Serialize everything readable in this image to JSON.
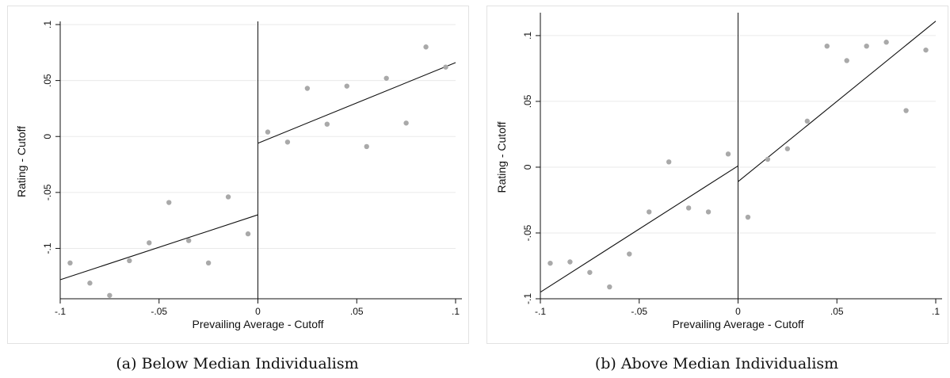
{
  "charts": [
    {
      "caption": "(a) Below Median Individualism",
      "chart_data": {
        "type": "scatter",
        "xlabel": "Prevailing Average - Cutoff",
        "ylabel": "Rating - Cutoff",
        "xlim": [
          -0.1,
          0.1
        ],
        "ylim": [
          -0.145,
          0.1
        ],
        "xticks": [
          -0.1,
          -0.05,
          0,
          0.05,
          0.1
        ],
        "xtick_labels": [
          "-.1",
          "-.05",
          "0",
          ".05",
          ".1"
        ],
        "yticks": [
          -0.1,
          -0.05,
          0,
          0.05,
          0.1
        ],
        "ytick_labels": [
          "-.1",
          "-.05",
          "0",
          ".05",
          ".1"
        ],
        "grid": true,
        "cutoff_line_x": 0,
        "points": [
          {
            "x": -0.095,
            "y": -0.113
          },
          {
            "x": -0.085,
            "y": -0.131
          },
          {
            "x": -0.075,
            "y": -0.142
          },
          {
            "x": -0.065,
            "y": -0.111
          },
          {
            "x": -0.055,
            "y": -0.095
          },
          {
            "x": -0.045,
            "y": -0.059
          },
          {
            "x": -0.035,
            "y": -0.093
          },
          {
            "x": -0.025,
            "y": -0.113
          },
          {
            "x": -0.015,
            "y": -0.054
          },
          {
            "x": -0.005,
            "y": -0.087
          },
          {
            "x": 0.005,
            "y": 0.004
          },
          {
            "x": 0.015,
            "y": -0.005
          },
          {
            "x": 0.025,
            "y": 0.043
          },
          {
            "x": 0.035,
            "y": 0.011
          },
          {
            "x": 0.045,
            "y": 0.045
          },
          {
            "x": 0.055,
            "y": -0.009
          },
          {
            "x": 0.065,
            "y": 0.052
          },
          {
            "x": 0.075,
            "y": 0.012
          },
          {
            "x": 0.085,
            "y": 0.08
          },
          {
            "x": 0.095,
            "y": 0.062
          }
        ],
        "fit_lines": [
          {
            "x": [
              -0.1,
              0
            ],
            "y": [
              -0.128,
              -0.07
            ]
          },
          {
            "x": [
              0,
              0.1
            ],
            "y": [
              -0.006,
              0.066
            ]
          }
        ]
      }
    },
    {
      "caption": "(b) Above Median Individualism",
      "chart_data": {
        "type": "scatter",
        "xlabel": "Prevailing Average - Cutoff",
        "ylabel": "Rating - Cutoff",
        "xlim": [
          -0.1,
          0.1
        ],
        "ylim": [
          -0.1,
          0.115
        ],
        "xticks": [
          -0.1,
          -0.05,
          0,
          0.05,
          0.1
        ],
        "xtick_labels": [
          "-.1",
          "-.05",
          "0",
          ".05",
          ".1"
        ],
        "yticks": [
          -0.1,
          -0.05,
          0,
          0.05,
          0.1
        ],
        "ytick_labels": [
          "-.1",
          "-.05",
          "0",
          ".05",
          ".1"
        ],
        "grid": true,
        "cutoff_line_x": 0,
        "points": [
          {
            "x": -0.095,
            "y": -0.073
          },
          {
            "x": -0.085,
            "y": -0.072
          },
          {
            "x": -0.075,
            "y": -0.08
          },
          {
            "x": -0.065,
            "y": -0.091
          },
          {
            "x": -0.055,
            "y": -0.066
          },
          {
            "x": -0.045,
            "y": -0.034
          },
          {
            "x": -0.035,
            "y": 0.004
          },
          {
            "x": -0.025,
            "y": -0.031
          },
          {
            "x": -0.015,
            "y": -0.034
          },
          {
            "x": -0.005,
            "y": 0.01
          },
          {
            "x": 0.005,
            "y": -0.038
          },
          {
            "x": 0.015,
            "y": 0.006
          },
          {
            "x": 0.025,
            "y": 0.014
          },
          {
            "x": 0.035,
            "y": 0.035
          },
          {
            "x": 0.045,
            "y": 0.092
          },
          {
            "x": 0.055,
            "y": 0.081
          },
          {
            "x": 0.065,
            "y": 0.092
          },
          {
            "x": 0.075,
            "y": 0.095
          },
          {
            "x": 0.085,
            "y": 0.043
          },
          {
            "x": 0.095,
            "y": 0.089
          }
        ],
        "fit_lines": [
          {
            "x": [
              -0.1,
              0
            ],
            "y": [
              -0.095,
              0.001
            ]
          },
          {
            "x": [
              0,
              0.1
            ],
            "y": [
              -0.011,
              0.111
            ]
          }
        ]
      }
    }
  ],
  "colors": {
    "points": "#a9a9a9",
    "lines": "#111111",
    "grid": "#eaeaea",
    "axis": "#111111"
  }
}
